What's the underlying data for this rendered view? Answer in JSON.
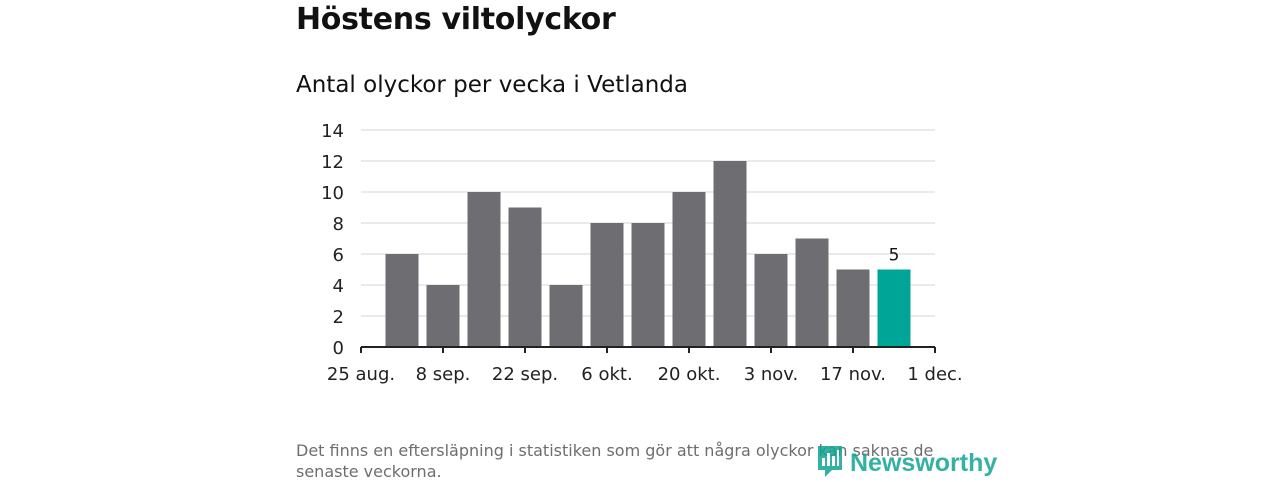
{
  "title": "Höstens viltolyckor",
  "subtitle": "Antal olyckor per vecka i Vetlanda",
  "footnote": "Det finns en eftersläpning i statistiken som gör att några olyckor kan saknas de senaste veckorna.",
  "logo": {
    "text": "Newsworthy",
    "icon": "newsworthy-logo-icon",
    "color": "#10a593"
  },
  "colors": {
    "bar": "#6e6d72",
    "highlight": "#00a598",
    "grid": "#dddddd",
    "axis": "#222222"
  },
  "chart_data": {
    "type": "bar",
    "title": "Antal olyckor per vecka i Vetlanda",
    "xlabel": "",
    "ylabel": "",
    "ylim": [
      0,
      14
    ],
    "yticks": [
      0,
      2,
      4,
      6,
      8,
      10,
      12,
      14
    ],
    "xticks": [
      "25 aug.",
      "8 sep.",
      "22 sep.",
      "6 okt.",
      "20 okt.",
      "3 nov.",
      "17 nov.",
      "1 dec."
    ],
    "x": [
      "2019-08-26",
      "2019-09-02",
      "2019-09-09",
      "2019-09-16",
      "2019-09-23",
      "2019-09-30",
      "2019-10-07",
      "2019-10-14",
      "2019-10-21",
      "2019-10-28",
      "2019-11-04",
      "2019-11-11",
      "2019-11-18"
    ],
    "values": [
      6,
      4,
      10,
      9,
      4,
      8,
      8,
      10,
      12,
      6,
      7,
      5,
      5
    ],
    "highlight_index": 12,
    "data_labels": [
      "5"
    ],
    "grid": true,
    "legend": "none"
  }
}
